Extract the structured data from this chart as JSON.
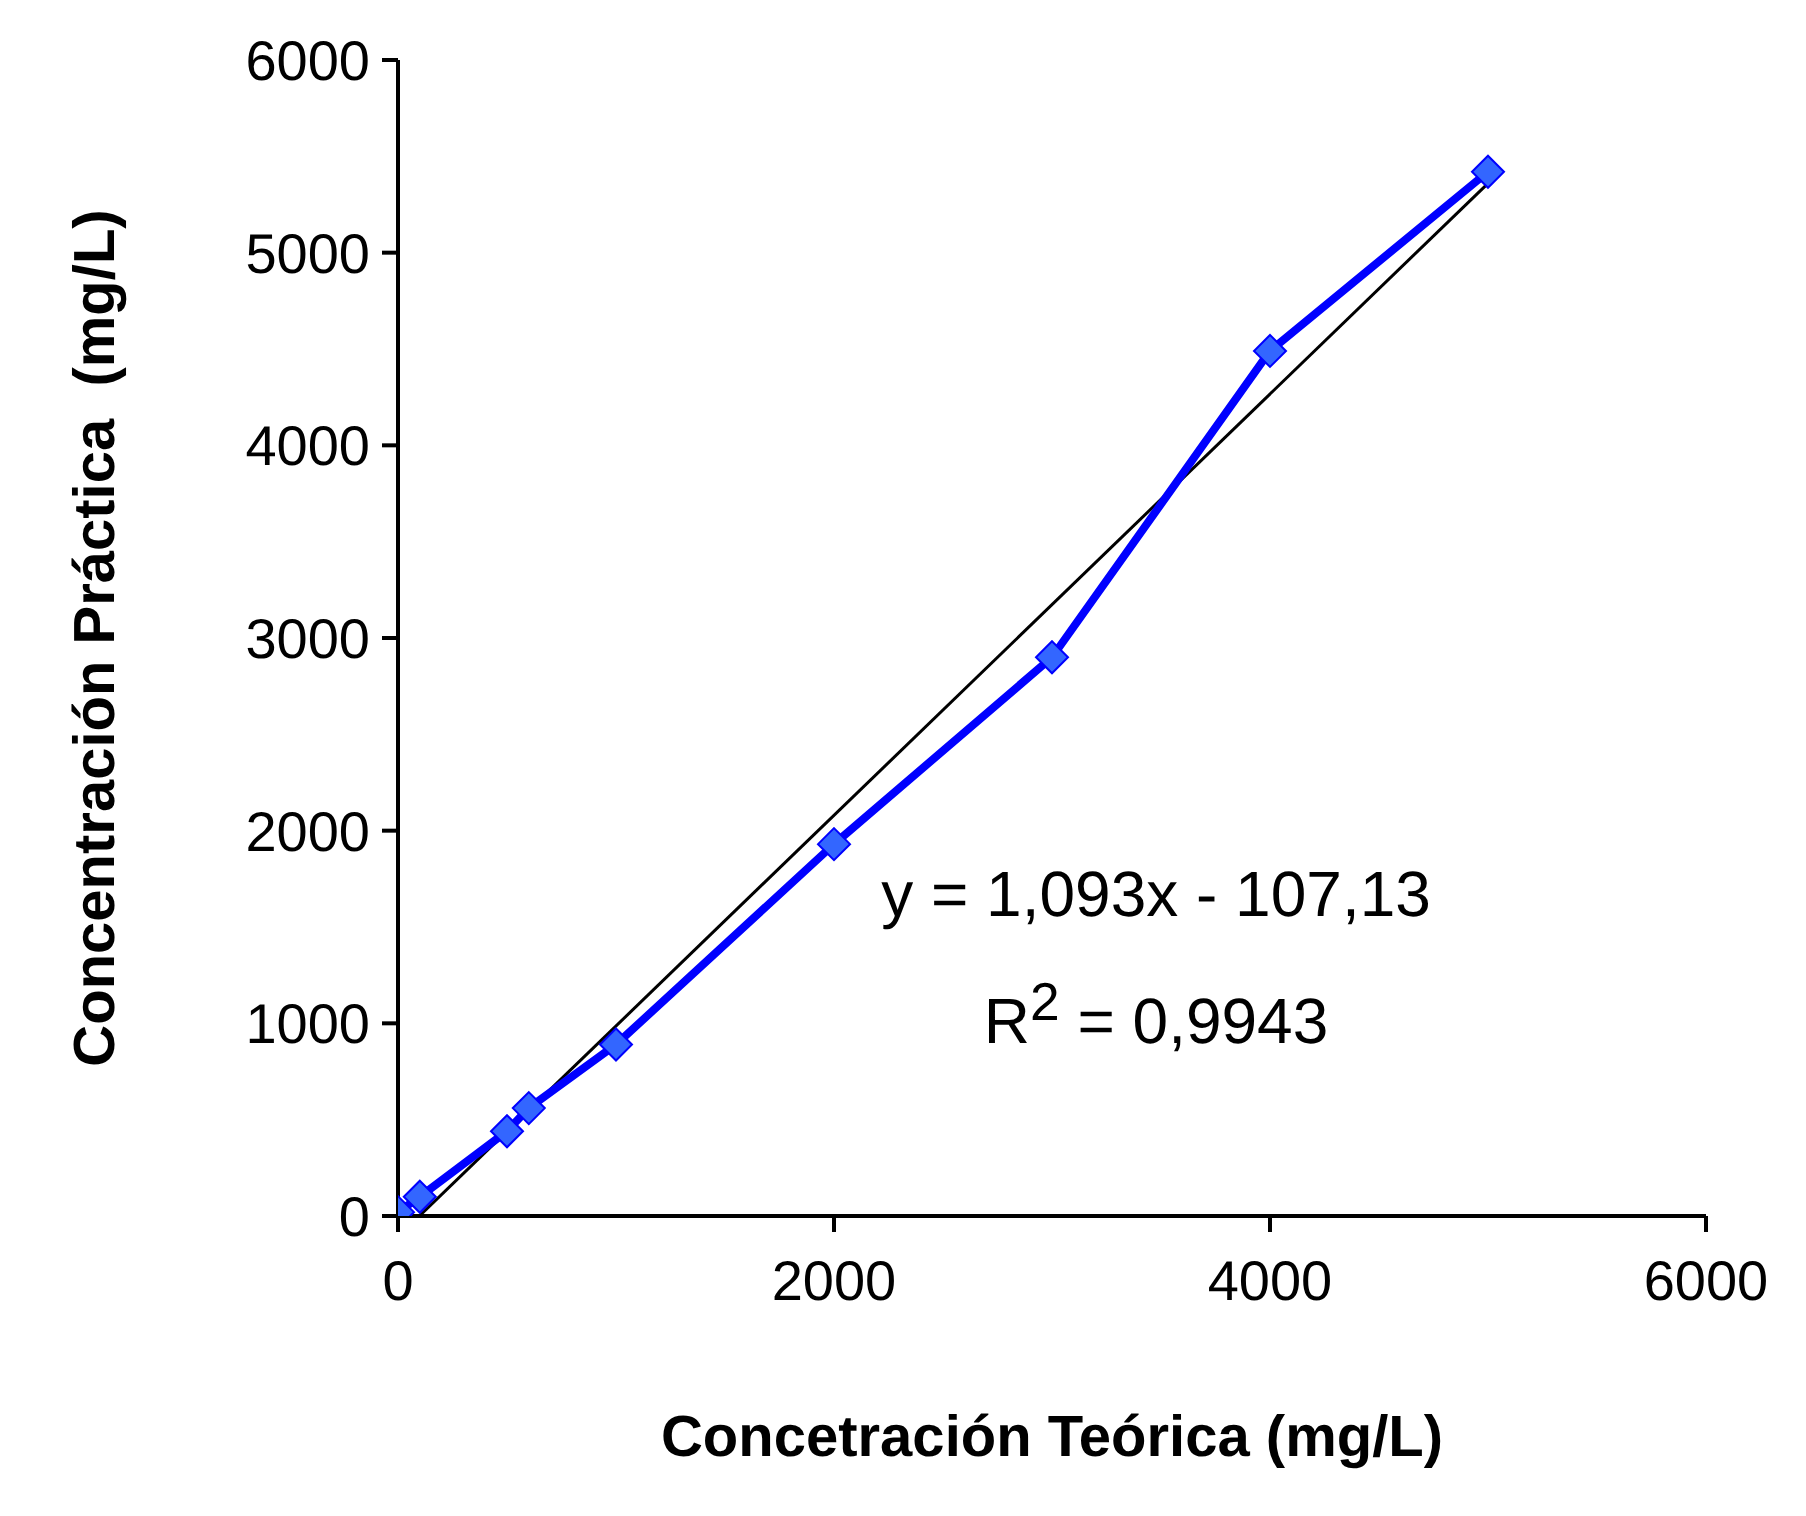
{
  "chart_data": {
    "type": "line",
    "xlabel": "Concetración Teórica (mg/L)",
    "ylabel": "Concentración Práctica  (mg/L)",
    "xlim": [
      0,
      6000
    ],
    "xticks": [
      0,
      2000,
      4000,
      6000
    ],
    "ylim": [
      0,
      6000
    ],
    "yticks": [
      0,
      1000,
      2000,
      3000,
      4000,
      5000,
      6000
    ],
    "marker": "diamond",
    "line_style": "solid",
    "series": [
      {
        "color": "#0000ff",
        "x": [
          0,
          100,
          500,
          600,
          1000,
          2000,
          3000,
          4000,
          5000
        ],
        "values": [
          20,
          100,
          440,
          560,
          890,
          1930,
          2900,
          4490,
          5420
        ]
      },
      {
        "color": "#000000",
        "marker": "none",
        "x": [
          98,
          5000
        ],
        "values": [
          0,
          5360
        ]
      }
    ],
    "annotations": [
      "y = 1,093x - 107,13",
      "R$^{2}$ = 0,9943"
    ]
  }
}
